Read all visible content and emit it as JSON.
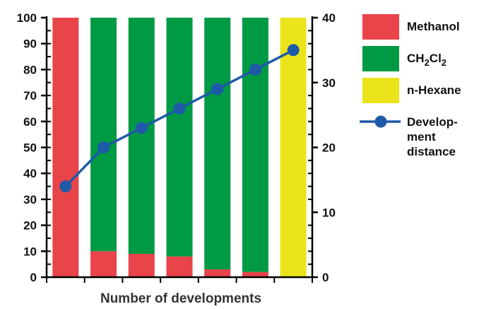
{
  "chart_data": {
    "type": "bar",
    "stacked": true,
    "xlabel": "Number of developments",
    "categories": [
      "1",
      "2",
      "3",
      "4",
      "5",
      "6",
      "7"
    ],
    "show_category_labels": false,
    "ylim": [
      0,
      100
    ],
    "y_ticks": [
      "0",
      "10",
      "20",
      "30",
      "40",
      "50",
      "60",
      "70",
      "80",
      "90",
      "100"
    ],
    "y2lim": [
      0,
      40
    ],
    "y2_ticks": [
      "0",
      "10",
      "20",
      "30",
      "40"
    ],
    "grid": false,
    "legend_position": "right",
    "series": [
      {
        "name": "Methanol",
        "color": "#e8444a",
        "values": [
          100,
          10,
          9,
          8,
          3,
          2,
          0
        ]
      },
      {
        "name": "CH2Cl2",
        "name_base": "CH",
        "name_sub1": "2",
        "name_mid": "Cl",
        "name_sub2": "2",
        "color": "#009a44",
        "values": [
          0,
          90,
          91,
          92,
          97,
          98,
          0
        ]
      },
      {
        "name": "n-Hexane",
        "color": "#ece41a",
        "values": [
          0,
          0,
          0,
          0,
          0,
          0,
          100
        ]
      }
    ],
    "line_series": {
      "name": "Development distance",
      "label_lines": [
        "Develop-",
        "ment",
        "distance"
      ],
      "color": "#1f5aa8",
      "axis": "right",
      "x": [
        "1",
        "2",
        "3",
        "4",
        "5",
        "6",
        "7"
      ],
      "values": [
        14,
        20,
        23,
        26,
        29,
        32,
        35
      ]
    }
  }
}
